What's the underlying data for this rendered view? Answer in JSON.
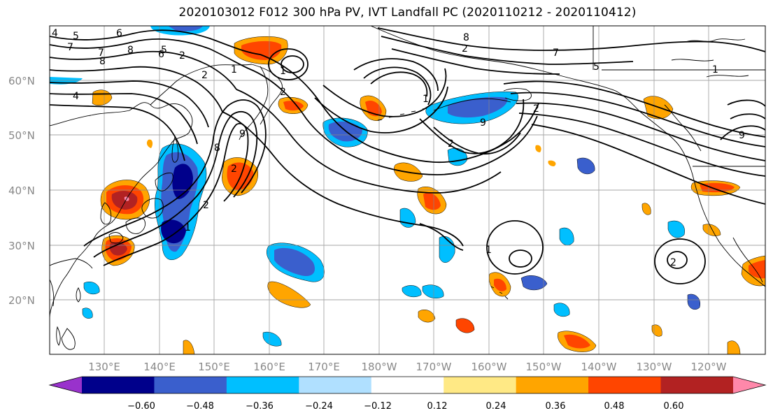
{
  "title": "2020103012 F012 300 hPa PV, IVT Landfall PC (2020110212 - 2020110412)",
  "lat_labels": [
    "60°N",
    "50°N",
    "40°N",
    "30°N",
    "20°N"
  ],
  "lon_labels": [
    "130°E",
    "140°E",
    "150°E",
    "160°E",
    "170°E",
    "180°W",
    "170°W",
    "160°W",
    "150°W",
    "140°W",
    "130°W",
    "120°W"
  ],
  "colorbar": {
    "colors": [
      "#9932cc",
      "#00008b",
      "#3a5fcd",
      "#00bfff",
      "#b0e0ff",
      "#ffffff",
      "#ffe985",
      "#ffa500",
      "#ff4500",
      "#b22222",
      "#ff88aa"
    ],
    "tick_labels": [
      "−0.60",
      "−0.48",
      "−0.36",
      "−0.24",
      "−0.12",
      "0.12",
      "0.24",
      "0.36",
      "0.48",
      "0.60"
    ]
  },
  "contour_labels": [
    "4",
    "5",
    "7",
    "8",
    "6",
    "4",
    "5",
    "8",
    "7",
    "2",
    "1",
    "6",
    "2",
    "1",
    "9",
    "8",
    "2",
    "1",
    "2",
    "2",
    "1",
    "2",
    "9",
    "2",
    "5",
    "7",
    "2",
    "1",
    "1",
    "2",
    "8",
    "9"
  ]
}
